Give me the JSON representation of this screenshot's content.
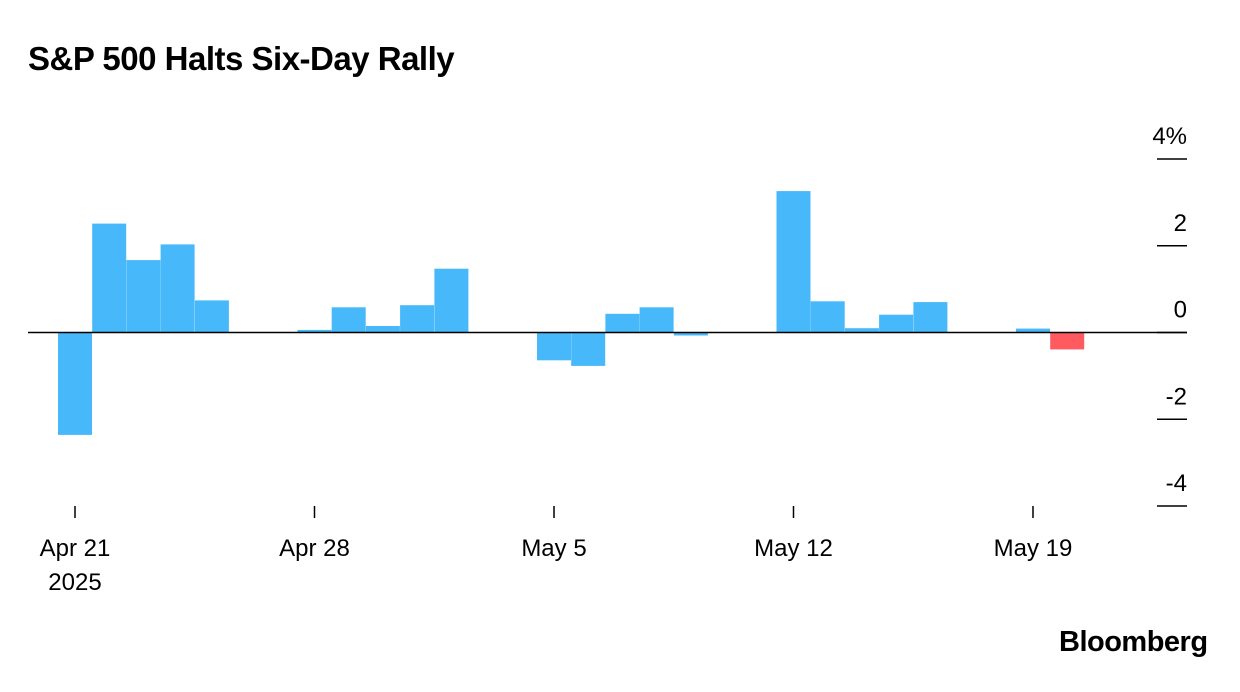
{
  "header": {
    "title": "S&P 500 Halts Six-Day Rally"
  },
  "footer": {
    "logo_text": "Bloomberg"
  },
  "colors": {
    "positive": "#47b8f9",
    "negative": "#ff5a5f",
    "axis": "#000000"
  },
  "chart_data": {
    "type": "bar",
    "title": "S&P 500 Halts Six-Day Rally",
    "xlabel": "",
    "ylabel": "",
    "y_unit": "%",
    "ylim": [
      -4,
      4
    ],
    "y_ticks": [
      {
        "value": 4,
        "label": "4%"
      },
      {
        "value": 2,
        "label": "2"
      },
      {
        "value": 0,
        "label": "0"
      },
      {
        "value": -2,
        "label": "-2"
      },
      {
        "value": -4,
        "label": "-4"
      }
    ],
    "x_ticks": [
      {
        "date": "2025-04-21",
        "label": "Apr 21",
        "sublabel": "2025"
      },
      {
        "date": "2025-04-28",
        "label": "Apr 28"
      },
      {
        "date": "2025-05-05",
        "label": "May 5"
      },
      {
        "date": "2025-05-12",
        "label": "May 12"
      },
      {
        "date": "2025-05-19",
        "label": "May 19"
      }
    ],
    "x_range": [
      "2025-04-21",
      "2025-05-21"
    ],
    "legend": "none",
    "grid": false,
    "series": [
      {
        "highlight_last": true,
        "points": [
          {
            "date": "2025-04-21",
            "value": -2.36
          },
          {
            "date": "2025-04-22",
            "value": 2.51
          },
          {
            "date": "2025-04-23",
            "value": 1.67
          },
          {
            "date": "2025-04-24",
            "value": 2.03
          },
          {
            "date": "2025-04-25",
            "value": 0.74
          },
          {
            "date": "2025-04-28",
            "value": 0.06
          },
          {
            "date": "2025-04-29",
            "value": 0.58
          },
          {
            "date": "2025-04-30",
            "value": 0.15
          },
          {
            "date": "2025-05-01",
            "value": 0.63
          },
          {
            "date": "2025-05-02",
            "value": 1.47
          },
          {
            "date": "2025-05-05",
            "value": -0.64
          },
          {
            "date": "2025-05-06",
            "value": -0.77
          },
          {
            "date": "2025-05-07",
            "value": 0.43
          },
          {
            "date": "2025-05-08",
            "value": 0.58
          },
          {
            "date": "2025-05-09",
            "value": -0.07
          },
          {
            "date": "2025-05-12",
            "value": 3.26
          },
          {
            "date": "2025-05-13",
            "value": 0.72
          },
          {
            "date": "2025-05-14",
            "value": 0.1
          },
          {
            "date": "2025-05-15",
            "value": 0.41
          },
          {
            "date": "2025-05-16",
            "value": 0.7
          },
          {
            "date": "2025-05-19",
            "value": 0.09
          },
          {
            "date": "2025-05-20",
            "value": -0.39
          }
        ]
      }
    ]
  }
}
